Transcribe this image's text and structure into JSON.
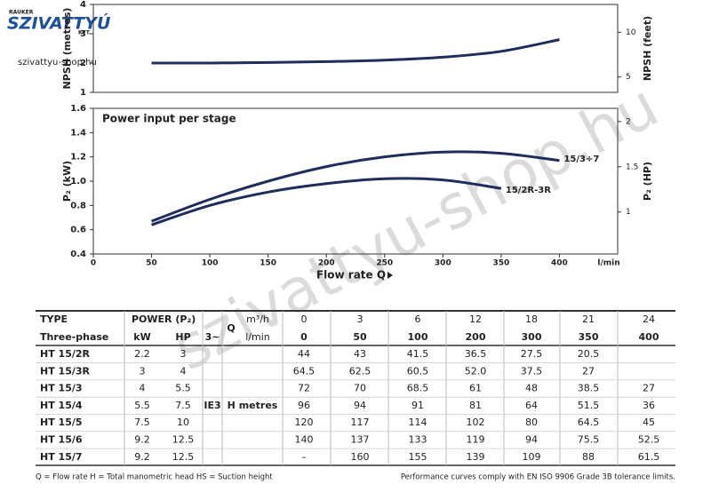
{
  "logo": {
    "company": "RAUKER",
    "brand": "SZIVATTYÚ",
    "suffix": "KFT.",
    "url": "szivattyu-shop.hu"
  },
  "watermark": "szivattyu-shop.hu",
  "chart_data": [
    {
      "type": "line",
      "y_label": "NPSH (metres)",
      "y2_label": "NPSH (feet)",
      "x": [
        50,
        100,
        150,
        200,
        250,
        300,
        350,
        400
      ],
      "series": [
        {
          "color": "#1f2d5c",
          "values": [
            2.0,
            2.0,
            2.02,
            2.05,
            2.1,
            2.2,
            2.4,
            2.8
          ]
        }
      ],
      "xlim": [
        0,
        450
      ],
      "ylim": [
        1,
        4
      ],
      "yticks": [
        1,
        2,
        3,
        4
      ],
      "y2lim": [
        3.28,
        13.12
      ],
      "y2ticks": [
        5,
        10
      ]
    },
    {
      "type": "line",
      "title": "Power input per stage",
      "y_label": "P₂ (kW)",
      "y2_label": "P₂ (HP)",
      "x_label": "Flow rate Q",
      "x_unit": "l/min",
      "x": [
        50,
        100,
        150,
        200,
        250,
        300,
        350,
        400
      ],
      "series": [
        {
          "name": "15/3÷7",
          "color": "#1f2d5c",
          "values": [
            0.67,
            0.85,
            1.0,
            1.12,
            1.2,
            1.24,
            1.23,
            1.17
          ]
        },
        {
          "name": "15/2R-3R",
          "color": "#1f2d5c",
          "values": [
            0.64,
            0.8,
            0.91,
            0.98,
            1.02,
            1.01,
            0.94,
            null
          ]
        }
      ],
      "xlim": [
        0,
        450
      ],
      "xticks": [
        0,
        50,
        100,
        150,
        200,
        250,
        300,
        350,
        400
      ],
      "ylim": [
        0.4,
        1.6
      ],
      "yticks": [
        0.4,
        0.6,
        0.8,
        {
          "value": 1,
          "label": "1.0"
        },
        1.2,
        1.4,
        1.6
      ],
      "y2lim": [
        0.536,
        2.146
      ],
      "y2ticks": [
        1,
        1.5,
        2
      ]
    }
  ],
  "table": {
    "columns": {
      "type": "TYPE",
      "power": "POWER (P₂)",
      "phase_label": "Three-phase",
      "kw": "kW",
      "hp": "HP",
      "phase": "3~",
      "q": "Q",
      "m3h": "m³/h",
      "lmin": "l/min",
      "ie3": "IE3",
      "head": "H metres"
    },
    "q_m3h": [
      0,
      3,
      6,
      12,
      18,
      21,
      24
    ],
    "q_lmin": [
      0,
      50,
      100,
      200,
      300,
      350,
      400
    ],
    "rows": [
      {
        "type": "HT 15/2R",
        "kw": 2.2,
        "hp": 3,
        "head": [
          44,
          43,
          41.5,
          36.5,
          27.5,
          20.5,
          null
        ]
      },
      {
        "type": "HT 15/3R",
        "kw": 3,
        "hp": 4,
        "head": [
          64.5,
          62.5,
          60.5,
          "52.0",
          37.5,
          27,
          null
        ]
      },
      {
        "type": "HT 15/3",
        "kw": 4,
        "hp": 5.5,
        "head": [
          72,
          70,
          68.5,
          61,
          48,
          38.5,
          27
        ]
      },
      {
        "type": "HT 15/4",
        "kw": 5.5,
        "hp": 7.5,
        "head": [
          96,
          94,
          91,
          81,
          64,
          51.5,
          36
        ]
      },
      {
        "type": "HT 15/5",
        "kw": 7.5,
        "hp": 10,
        "head": [
          120,
          117,
          114,
          102,
          80,
          64.5,
          45
        ]
      },
      {
        "type": "HT 15/6",
        "kw": 9.2,
        "hp": 12.5,
        "head": [
          140,
          137,
          133,
          119,
          94,
          75.5,
          52.5
        ]
      },
      {
        "type": "HT 15/7",
        "kw": 9.2,
        "hp": 12.5,
        "head": [
          "–",
          160,
          155,
          139,
          109,
          88,
          61.5
        ]
      }
    ]
  },
  "footer": {
    "legend": "Q = Flow rate  H = Total manometric head  HS = Suction height",
    "note": "Performance curves comply with EN ISO 9906 Grade 3B tolerance limits."
  }
}
